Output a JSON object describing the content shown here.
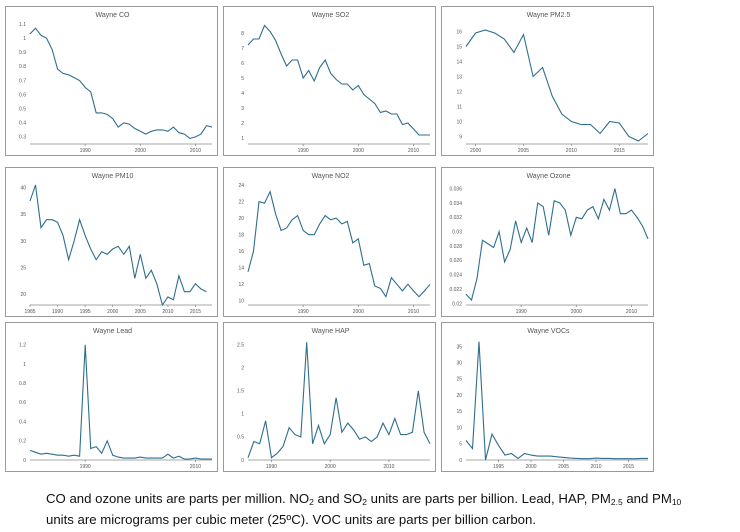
{
  "chart_data": [
    {
      "type": "line",
      "title": "Wayne CO",
      "x_start": 1980,
      "x_step": 1,
      "values": [
        1.03,
        1.07,
        1.02,
        1.0,
        0.92,
        0.78,
        0.75,
        0.74,
        0.72,
        0.7,
        0.65,
        0.62,
        0.47,
        0.47,
        0.46,
        0.43,
        0.37,
        0.4,
        0.39,
        0.36,
        0.34,
        0.32,
        0.34,
        0.35,
        0.35,
        0.34,
        0.37,
        0.33,
        0.32,
        0.29,
        0.3,
        0.32,
        0.38,
        0.37
      ],
      "xlim": [
        1980,
        2013
      ],
      "ylim": [
        0.25,
        1.1
      ],
      "x_ticks": [
        {
          "v": 1990,
          "t": "1990"
        },
        {
          "v": 2000,
          "t": "2000"
        },
        {
          "v": 2010,
          "t": "2010"
        }
      ],
      "y_ticks": [
        {
          "v": 0.3,
          "t": "0.3"
        },
        {
          "v": 0.4,
          "t": "0.4"
        },
        {
          "v": 0.5,
          "t": "0.5"
        },
        {
          "v": 0.6,
          "t": "0.6"
        },
        {
          "v": 0.7,
          "t": "0.7"
        },
        {
          "v": 0.8,
          "t": "0.8"
        },
        {
          "v": 0.9,
          "t": "0.9"
        },
        {
          "v": 1.0,
          "t": "1"
        },
        {
          "v": 1.1,
          "t": "1.1"
        }
      ]
    },
    {
      "type": "line",
      "title": "Wayne SO2",
      "x_start": 1980,
      "x_step": 1,
      "values": [
        7.2,
        7.6,
        7.6,
        8.5,
        8.1,
        7.5,
        6.6,
        5.8,
        6.2,
        6.2,
        5.0,
        5.5,
        4.8,
        5.7,
        6.2,
        5.3,
        4.9,
        4.6,
        4.6,
        4.2,
        4.5,
        3.9,
        3.6,
        3.3,
        2.7,
        2.8,
        2.6,
        2.6,
        1.9,
        2.0,
        1.6,
        1.2,
        1.2,
        1.2
      ],
      "xlim": [
        1980,
        2013
      ],
      "ylim": [
        0.6,
        8.6
      ],
      "x_ticks": [
        {
          "v": 1990,
          "t": "1990"
        },
        {
          "v": 2000,
          "t": "2000"
        },
        {
          "v": 2010,
          "t": "2010"
        }
      ],
      "y_ticks": [
        {
          "v": 1,
          "t": "1"
        },
        {
          "v": 2,
          "t": "2"
        },
        {
          "v": 3,
          "t": "3"
        },
        {
          "v": 4,
          "t": "4"
        },
        {
          "v": 5,
          "t": "5"
        },
        {
          "v": 6,
          "t": "6"
        },
        {
          "v": 7,
          "t": "7"
        },
        {
          "v": 8,
          "t": "8"
        }
      ]
    },
    {
      "type": "line",
      "title": "Wayne PM2.5",
      "x_start": 1999,
      "x_step": 1,
      "values": [
        15.0,
        15.9,
        16.1,
        15.9,
        15.5,
        14.6,
        15.8,
        13.0,
        13.6,
        11.7,
        10.5,
        10.0,
        9.8,
        9.8,
        9.2,
        10.0,
        9.9,
        9.0,
        8.7,
        9.2
      ],
      "xlim": [
        1999,
        2018
      ],
      "ylim": [
        8.5,
        16.5
      ],
      "x_ticks": [
        {
          "v": 2000,
          "t": "2000"
        },
        {
          "v": 2005,
          "t": "2005"
        },
        {
          "v": 2010,
          "t": "2010"
        },
        {
          "v": 2015,
          "t": "2015"
        }
      ],
      "y_ticks": [
        {
          "v": 9,
          "t": "9"
        },
        {
          "v": 10,
          "t": "10"
        },
        {
          "v": 11,
          "t": "11"
        },
        {
          "v": 12,
          "t": "12"
        },
        {
          "v": 13,
          "t": "13"
        },
        {
          "v": 14,
          "t": "14"
        },
        {
          "v": 15,
          "t": "15"
        },
        {
          "v": 16,
          "t": "16"
        }
      ]
    },
    {
      "type": "line",
      "title": "Wayne PM10",
      "x_start": 1985,
      "x_step": 1,
      "values": [
        37.5,
        40.5,
        32.5,
        34.0,
        34.0,
        33.5,
        31.0,
        26.5,
        30.0,
        34.0,
        31.0,
        28.5,
        26.5,
        28.0,
        27.5,
        28.5,
        29.0,
        27.5,
        29.0,
        23.0,
        27.5,
        23.0,
        24.5,
        22.0,
        18.0,
        19.5,
        19.0,
        23.5,
        20.5,
        20.5,
        22.0,
        21.0,
        20.5
      ],
      "xlim": [
        1985,
        2018
      ],
      "ylim": [
        18,
        40.5
      ],
      "x_ticks": [
        {
          "v": 1985,
          "t": "1985"
        },
        {
          "v": 1990,
          "t": "1990"
        },
        {
          "v": 1995,
          "t": "1995"
        },
        {
          "v": 2000,
          "t": "2000"
        },
        {
          "v": 2005,
          "t": "2005"
        },
        {
          "v": 2010,
          "t": "2010"
        },
        {
          "v": 2015,
          "t": "2015"
        }
      ],
      "y_ticks": [
        {
          "v": 20,
          "t": "20"
        },
        {
          "v": 25,
          "t": "25"
        },
        {
          "v": 30,
          "t": "30"
        },
        {
          "v": 35,
          "t": "35"
        },
        {
          "v": 40,
          "t": "40"
        }
      ]
    },
    {
      "type": "line",
      "title": "Wayne NO2",
      "x_start": 1980,
      "x_step": 1,
      "values": [
        13.5,
        16.0,
        22.0,
        21.8,
        23.2,
        20.5,
        18.5,
        18.8,
        19.8,
        20.3,
        18.5,
        18.0,
        18.0,
        19.3,
        20.3,
        19.8,
        20.0,
        19.3,
        19.6,
        17.0,
        17.5,
        14.3,
        14.5,
        11.8,
        11.5,
        10.5,
        12.8,
        12.0,
        11.2,
        12.0,
        11.2,
        10.5,
        11.2,
        12.0
      ],
      "xlim": [
        1980,
        2013
      ],
      "ylim": [
        9.5,
        24
      ],
      "x_ticks": [
        {
          "v": 1990,
          "t": "1990"
        },
        {
          "v": 2000,
          "t": "2000"
        },
        {
          "v": 2010,
          "t": "2010"
        }
      ],
      "y_ticks": [
        {
          "v": 10,
          "t": "10"
        },
        {
          "v": 12,
          "t": "12"
        },
        {
          "v": 14,
          "t": "14"
        },
        {
          "v": 16,
          "t": "16"
        },
        {
          "v": 18,
          "t": "18"
        },
        {
          "v": 20,
          "t": "20"
        },
        {
          "v": 22,
          "t": "22"
        },
        {
          "v": 24,
          "t": "24"
        }
      ]
    },
    {
      "type": "line",
      "title": "Wayne Ozone",
      "x_start": 1980,
      "x_step": 1,
      "values": [
        0.0213,
        0.0205,
        0.0235,
        0.0288,
        0.0283,
        0.0278,
        0.03,
        0.0258,
        0.0275,
        0.0315,
        0.0285,
        0.0305,
        0.0285,
        0.034,
        0.0335,
        0.0295,
        0.0343,
        0.034,
        0.033,
        0.0295,
        0.032,
        0.0318,
        0.033,
        0.0335,
        0.0318,
        0.0345,
        0.033,
        0.036,
        0.0325,
        0.0325,
        0.033,
        0.032,
        0.0308,
        0.029
      ],
      "xlim": [
        1980,
        2013
      ],
      "ylim": [
        0.0198,
        0.0365
      ],
      "x_ticks": [
        {
          "v": 1990,
          "t": "1990"
        },
        {
          "v": 2000,
          "t": "2000"
        },
        {
          "v": 2010,
          "t": "2010"
        }
      ],
      "y_ticks": [
        {
          "v": 0.02,
          "t": "0.02"
        },
        {
          "v": 0.022,
          "t": "0.022"
        },
        {
          "v": 0.024,
          "t": "0.024"
        },
        {
          "v": 0.026,
          "t": "0.026"
        },
        {
          "v": 0.028,
          "t": "0.028"
        },
        {
          "v": 0.03,
          "t": "0.03"
        },
        {
          "v": 0.032,
          "t": "0.032"
        },
        {
          "v": 0.034,
          "t": "0.034"
        },
        {
          "v": 0.036,
          "t": "0.036"
        }
      ]
    },
    {
      "type": "line",
      "title": "Wayne Lead",
      "x_start": 1980,
      "x_step": 1,
      "values": [
        0.1,
        0.08,
        0.06,
        0.07,
        0.06,
        0.05,
        0.05,
        0.04,
        0.05,
        0.04,
        1.2,
        0.12,
        0.14,
        0.07,
        0.2,
        0.05,
        0.03,
        0.02,
        0.02,
        0.02,
        0.03,
        0.02,
        0.02,
        0.02,
        0.02,
        0.06,
        0.02,
        0.04,
        0.01,
        0.01,
        0.02,
        0.01,
        0.01,
        0.01
      ],
      "xlim": [
        1980,
        2013
      ],
      "ylim": [
        0,
        1.25
      ],
      "x_ticks": [
        {
          "v": 1990,
          "t": "1990"
        },
        {
          "v": 2010,
          "t": "2010"
        }
      ],
      "y_ticks": [
        {
          "v": 0,
          "t": "0"
        },
        {
          "v": 0.2,
          "t": "0.2"
        },
        {
          "v": 0.4,
          "t": "0.4"
        },
        {
          "v": 0.6,
          "t": "0.6"
        },
        {
          "v": 0.8,
          "t": "0.8"
        },
        {
          "v": 1.0,
          "t": "1"
        },
        {
          "v": 1.2,
          "t": "1.2"
        }
      ]
    },
    {
      "type": "line",
      "title": "Wayne HAP",
      "x_start": 1986,
      "x_step": 1,
      "values": [
        0.05,
        0.4,
        0.35,
        0.85,
        0.05,
        0.15,
        0.3,
        0.7,
        0.55,
        0.5,
        2.55,
        0.35,
        0.75,
        0.35,
        0.55,
        1.35,
        0.6,
        0.8,
        0.65,
        0.45,
        0.5,
        0.4,
        0.5,
        0.8,
        0.55,
        0.9,
        0.55,
        0.55,
        0.6,
        1.5,
        0.6,
        0.35
      ],
      "xlim": [
        1986,
        2017
      ],
      "ylim": [
        0,
        2.6
      ],
      "x_ticks": [
        {
          "v": 1990,
          "t": "1990"
        },
        {
          "v": 2000,
          "t": "2000"
        },
        {
          "v": 2010,
          "t": "2010"
        }
      ],
      "y_ticks": [
        {
          "v": 0,
          "t": "0"
        },
        {
          "v": 0.5,
          "t": "0.5"
        },
        {
          "v": 1.0,
          "t": "1"
        },
        {
          "v": 1.5,
          "t": "1.5"
        },
        {
          "v": 2.0,
          "t": "2"
        },
        {
          "v": 2.5,
          "t": "2.5"
        }
      ]
    },
    {
      "type": "line",
      "title": "Wayne VOCs",
      "x_start": 1990,
      "x_step": 1,
      "values": [
        6.0,
        3.5,
        36.5,
        0.0,
        8.0,
        4.5,
        1.5,
        2.0,
        0.5,
        2.0,
        1.5,
        1.2,
        1.2,
        1.2,
        1.0,
        0.8,
        0.6,
        0.5,
        0.4,
        0.4,
        0.6,
        0.5,
        0.5,
        0.4,
        0.4,
        0.4,
        0.4,
        0.5,
        0.5
      ],
      "xlim": [
        1990,
        2018
      ],
      "ylim": [
        0,
        37
      ],
      "x_ticks": [
        {
          "v": 1995,
          "t": "1995"
        },
        {
          "v": 2000,
          "t": "2000"
        },
        {
          "v": 2005,
          "t": "2005"
        },
        {
          "v": 2010,
          "t": "2010"
        },
        {
          "v": 2015,
          "t": "2015"
        }
      ],
      "y_ticks": [
        {
          "v": 0,
          "t": "0"
        },
        {
          "v": 5,
          "t": "5"
        },
        {
          "v": 10,
          "t": "10"
        },
        {
          "v": 15,
          "t": "15"
        },
        {
          "v": 20,
          "t": "20"
        },
        {
          "v": 25,
          "t": "25"
        },
        {
          "v": 30,
          "t": "30"
        },
        {
          "v": 35,
          "t": "35"
        }
      ]
    }
  ],
  "caption": {
    "s1": "CO and ozone units are parts per million.  NO",
    "s2": "2",
    "s3": " and SO",
    "s4": "2",
    "s5": " units are parts per billion.  Lead, HAP, PM",
    "s6": "2.5",
    "s7": " and PM",
    "s8": "10",
    "s9": "units are micrograms per cubic meter (25ºC).  VOC units are parts per billion carbon."
  }
}
